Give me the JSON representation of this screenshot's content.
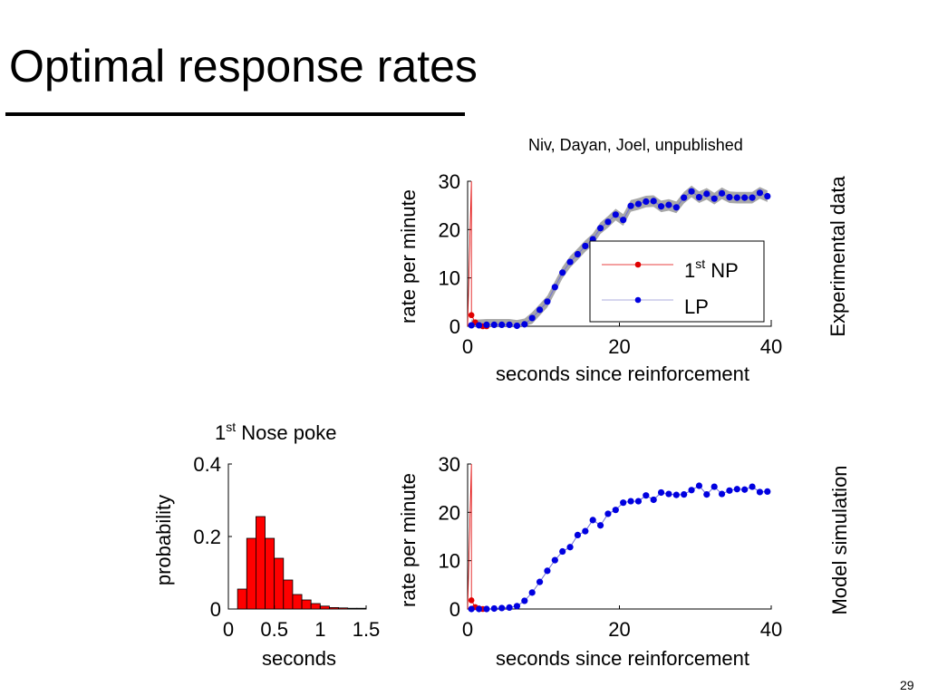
{
  "slide": {
    "title": "Optimal response rates",
    "citation": "Niv, Dayan, Joel, unpublished",
    "page_number": "29"
  },
  "colors": {
    "np": "#e00000",
    "lp": "#0000e0",
    "band": "#a8a8a8",
    "hist_fill": "#ff0000"
  },
  "chart_data": [
    {
      "id": "experimental",
      "type": "line",
      "side_label": "Experimental data",
      "xlabel": "seconds since reinforcement",
      "ylabel": "rate per minute",
      "xlim": [
        0,
        40
      ],
      "ylim": [
        0,
        30
      ],
      "xticks": [
        "0",
        "20",
        "40"
      ],
      "yticks": [
        "0",
        "10",
        "20",
        "30"
      ],
      "legend": {
        "position": "center-right",
        "entries": [
          {
            "base": "1",
            "sup": "st",
            "rest": " NP"
          },
          {
            "base": "LP",
            "sup": "",
            "rest": ""
          }
        ]
      },
      "series": [
        {
          "name": "1st NP",
          "x": [
            0.5,
            1.0,
            1.5,
            2.0,
            2.5
          ],
          "y": [
            2.3,
            0.8,
            0.2,
            0.0,
            0.0
          ],
          "peak": [
            0.5,
            30
          ]
        },
        {
          "name": "LP",
          "x": [
            0.5,
            1.5,
            2.5,
            3.5,
            4.5,
            5.5,
            6.5,
            7.5,
            8.5,
            9.5,
            10.5,
            11.5,
            12.5,
            13.5,
            14.5,
            15.5,
            16.5,
            17.5,
            18.5,
            19.5,
            20.5,
            21.5,
            22.5,
            23.5,
            24.5,
            25.5,
            26.5,
            27.5,
            28.5,
            29.5,
            30.5,
            31.5,
            32.5,
            33.5,
            34.5,
            35.5,
            36.5,
            37.5,
            38.5,
            39.5
          ],
          "y": [
            0.2,
            0.2,
            0.3,
            0.3,
            0.3,
            0.3,
            0.1,
            0.4,
            1.7,
            3.4,
            5.1,
            8.1,
            11.1,
            13.3,
            14.9,
            16.6,
            18.0,
            20.3,
            21.6,
            23.1,
            22.0,
            24.9,
            25.3,
            25.8,
            25.9,
            24.8,
            25.1,
            24.6,
            26.6,
            27.9,
            26.7,
            27.4,
            26.4,
            27.5,
            26.7,
            26.6,
            26.6,
            26.6,
            27.6,
            26.9
          ],
          "band": 1.2
        }
      ]
    },
    {
      "id": "simulation",
      "type": "line",
      "side_label": "Model simulation",
      "xlabel": "seconds since reinforcement",
      "ylabel": "rate per minute",
      "xlim": [
        0,
        40
      ],
      "ylim": [
        0,
        30
      ],
      "xticks": [
        "0",
        "20",
        "40"
      ],
      "yticks": [
        "0",
        "10",
        "20",
        "30"
      ],
      "series": [
        {
          "name": "1st NP",
          "x": [
            0.5,
            1.0,
            1.5,
            2.0,
            2.5
          ],
          "y": [
            1.8,
            0.4,
            0.1,
            0.0,
            0.0
          ],
          "peak": [
            0.5,
            30
          ]
        },
        {
          "name": "LP",
          "x": [
            0.5,
            1.5,
            2.5,
            3.5,
            4.5,
            5.5,
            6.5,
            7.5,
            8.5,
            9.5,
            10.5,
            11.5,
            12.5,
            13.5,
            14.5,
            15.5,
            16.5,
            17.5,
            18.5,
            19.5,
            20.5,
            21.5,
            22.5,
            23.5,
            24.5,
            25.5,
            26.5,
            27.5,
            28.5,
            29.5,
            30.5,
            31.5,
            32.5,
            33.5,
            34.5,
            35.5,
            36.5,
            37.5,
            38.5,
            39.5
          ],
          "y": [
            0.0,
            0.0,
            0.0,
            0.1,
            0.2,
            0.3,
            0.6,
            1.7,
            3.4,
            5.6,
            7.9,
            10.1,
            11.9,
            12.8,
            15.3,
            16.1,
            18.4,
            17.3,
            19.7,
            20.5,
            22.0,
            22.3,
            22.3,
            23.5,
            22.6,
            24.1,
            23.8,
            23.6,
            23.7,
            24.6,
            25.5,
            23.7,
            25.3,
            23.8,
            24.5,
            24.8,
            24.7,
            25.3,
            24.2,
            24.3
          ]
        }
      ]
    },
    {
      "id": "histogram",
      "type": "bar",
      "title": {
        "base": "1",
        "sup": "st",
        "rest": " Nose poke"
      },
      "xlabel": "seconds",
      "ylabel": "probability",
      "xlim": [
        0,
        1.5
      ],
      "ylim": [
        0,
        0.4
      ],
      "xticks": [
        "0",
        "0.5",
        "1",
        "1.5"
      ],
      "yticks": [
        "0",
        "0.2",
        "0.4"
      ],
      "bin_width": 0.1,
      "bin_starts": [
        0.1,
        0.2,
        0.3,
        0.4,
        0.5,
        0.6,
        0.7,
        0.8,
        0.9,
        1.0,
        1.1,
        1.2,
        1.3,
        1.4
      ],
      "values": [
        0.055,
        0.195,
        0.255,
        0.195,
        0.14,
        0.08,
        0.04,
        0.025,
        0.015,
        0.008,
        0.004,
        0.003,
        0.002,
        0.002
      ]
    }
  ]
}
